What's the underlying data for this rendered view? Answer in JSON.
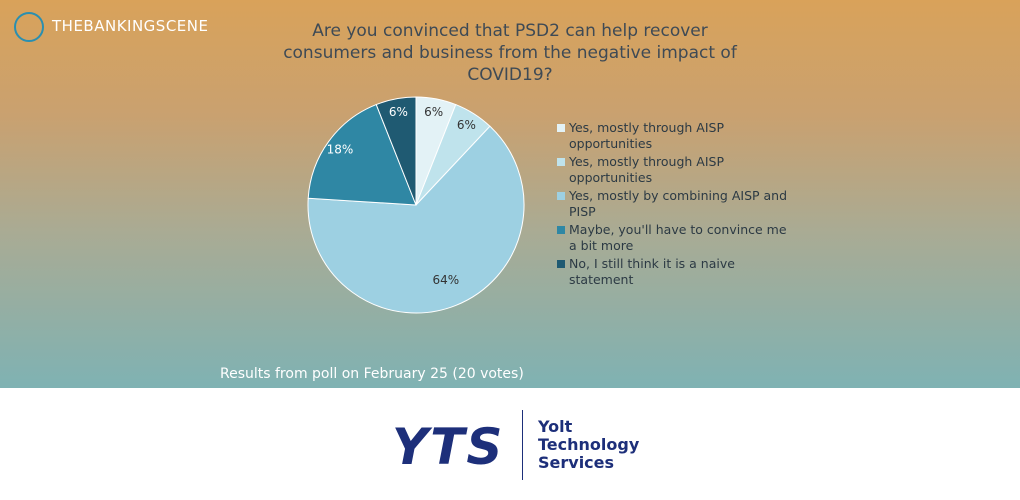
{
  "brand": "THEBANKINGSCENE",
  "chart_data": {
    "type": "pie",
    "title": "Are you convinced that PSD2 can help recover consumers and business from the negative impact of COVID19?",
    "categories": [
      "Yes, mostly through AISP opportunities",
      "Yes, mostly through AISP opportunities",
      "Yes, mostly by combining AISP and PISP",
      "Maybe, you'll have to convince me a bit more",
      "No, I still think it is a naive statement"
    ],
    "values": [
      6,
      6,
      64,
      18,
      6
    ],
    "value_labels": [
      "6%",
      "6%",
      "64%",
      "18%",
      "6%"
    ],
    "colors": [
      "#e3f2f6",
      "#bfe3ec",
      "#9dd0e2",
      "#2f87a4",
      "#1f5a72"
    ],
    "label_colors": [
      "#333333",
      "#333333",
      "#333333",
      "#ffffff",
      "#ffffff"
    ],
    "caption": "Results from poll on February 25 (20 votes)"
  },
  "footer": {
    "logo": "YTS",
    "company": [
      "Yolt",
      "Technology",
      "Services"
    ]
  }
}
